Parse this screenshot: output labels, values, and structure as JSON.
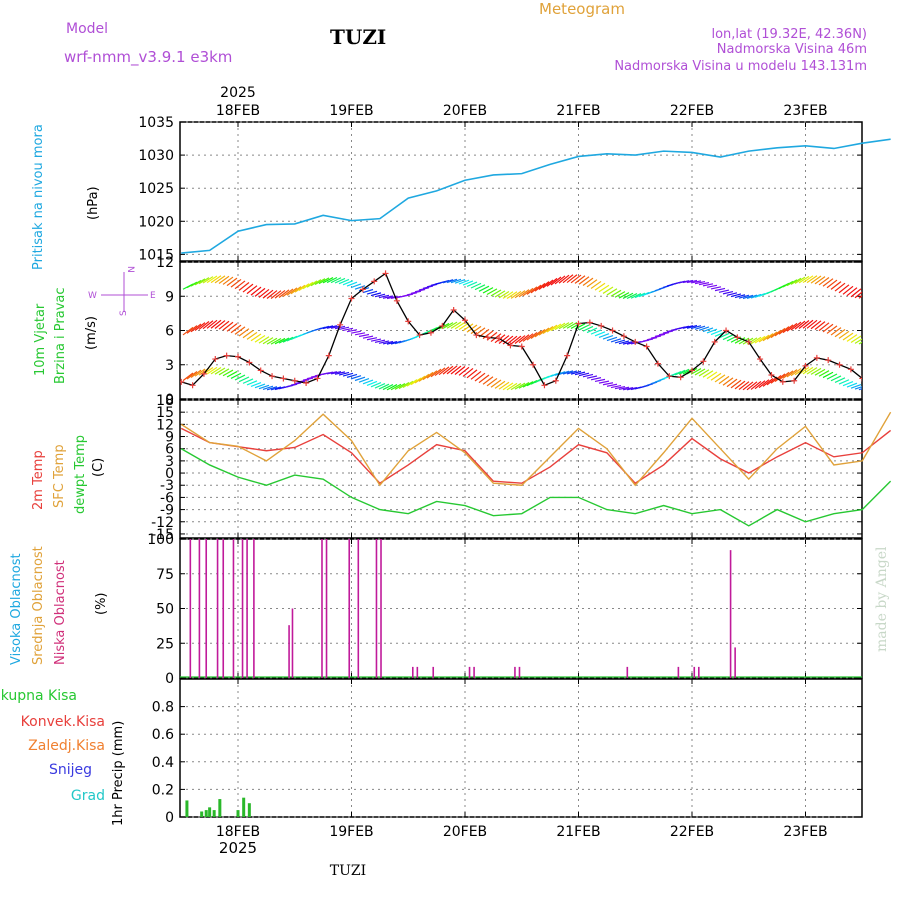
{
  "header": {
    "model_label": "Model",
    "model_name": "wrf-nmm_v3.9.1 e3km",
    "station": "TUZI",
    "meteogram": "Meteogram",
    "lonlat": "lon,lat (19.32E, 42.36N)",
    "elevation": "Nadmorska Visina 46m",
    "model_elevation": "Nadmorska Visina u modelu 143.131m",
    "year_top": "2025",
    "year_bottom": "2025",
    "footer_station": "TUZI",
    "watermark": "made by Angel"
  },
  "days": [
    "18FEB",
    "19FEB",
    "20FEB",
    "21FEB",
    "22FEB",
    "23FEB"
  ],
  "colors": {
    "pressure": "#1fa8e0",
    "temp": "#e8403c",
    "sfc": "#e0a23a",
    "dew": "#27c832",
    "cloud_low": "#c01a9a",
    "precip": "#2ab82a",
    "violet": "#b04fd6",
    "grid": "#888888"
  },
  "chart_data": [
    {
      "id": "pressure",
      "type": "line",
      "ylabel": "(hPa)",
      "side_labels": [
        "Pritisak na nivou mora"
      ],
      "ylim": [
        1014,
        1035
      ],
      "yticks": [
        1015,
        1020,
        1025,
        1030,
        1035
      ],
      "x": [
        0,
        0.25,
        0.5,
        0.75,
        1,
        1.25,
        1.5,
        1.75,
        2,
        2.25,
        2.5,
        2.75,
        3,
        3.25,
        3.5,
        3.75,
        4,
        4.25,
        4.5,
        4.75,
        5,
        5.25,
        5.5,
        5.75,
        6,
        6.25
      ],
      "values": [
        1015.2,
        1015.6,
        1018.5,
        1019.5,
        1019.6,
        1020.9,
        1020.1,
        1020.4,
        1023.5,
        1024.6,
        1026.2,
        1027.0,
        1027.2,
        1028.6,
        1029.8,
        1030.2,
        1030.0,
        1030.6,
        1030.4,
        1029.7,
        1030.6,
        1031.1,
        1031.4,
        1031.0,
        1031.8,
        1032.4
      ]
    },
    {
      "id": "wind",
      "type": "line",
      "ylabel": "(m/s)",
      "side_labels": [
        "10m Vjetar",
        "Brzina i Pravac"
      ],
      "compass": [
        "W",
        "E",
        "N",
        "S"
      ],
      "ylim": [
        0,
        12
      ],
      "yticks": [
        0,
        3,
        6,
        9,
        12
      ],
      "x": [
        0,
        0.1,
        0.2,
        0.3,
        0.4,
        0.5,
        0.6,
        0.7,
        0.8,
        0.9,
        1.0,
        1.1,
        1.2,
        1.3,
        1.4,
        1.5,
        1.6,
        1.7,
        1.8,
        1.9,
        2.0,
        2.1,
        2.2,
        2.3,
        2.4,
        2.5,
        2.6,
        2.7,
        2.8,
        2.9,
        3.0,
        3.1,
        3.2,
        3.3,
        3.4,
        3.5,
        3.6,
        3.7,
        3.8,
        3.9,
        4.0,
        4.1,
        4.2,
        4.3,
        4.4,
        4.5,
        4.6,
        4.7,
        4.8,
        4.9,
        5.0,
        5.1,
        5.2,
        5.3,
        5.4,
        5.5,
        5.6,
        5.7,
        5.8,
        5.9,
        6.0,
        6.1,
        6.2,
        6.3
      ],
      "values": [
        1.5,
        1.2,
        2.2,
        3.5,
        3.8,
        3.7,
        3.2,
        2.5,
        2.0,
        1.8,
        1.6,
        1.4,
        1.8,
        3.8,
        6.5,
        8.8,
        9.6,
        10.3,
        11.0,
        8.6,
        6.8,
        5.6,
        5.8,
        6.4,
        7.8,
        6.9,
        5.6,
        5.4,
        5.3,
        4.7,
        4.6,
        3.0,
        1.2,
        1.6,
        3.8,
        6.6,
        6.7,
        6.4,
        6.0,
        5.5,
        5.0,
        4.6,
        3.1,
        2.0,
        1.9,
        2.5,
        3.3,
        5.0,
        6.0,
        5.4,
        5.0,
        3.5,
        2.1,
        1.5,
        1.6,
        2.9,
        3.6,
        3.4,
        3.0,
        2.6,
        1.8,
        1.2,
        1.0,
        1.8
      ]
    },
    {
      "id": "temperature",
      "type": "line",
      "ylabel": "(C)",
      "side_labels": [
        "2m Temp",
        "SFC Temp",
        "dewpt Temp"
      ],
      "ylim": [
        -16,
        18
      ],
      "yticks": [
        -15,
        -12,
        -9,
        -6,
        -3,
        0,
        3,
        6,
        9,
        12,
        15,
        18
      ],
      "x": [
        0,
        0.25,
        0.5,
        0.75,
        1,
        1.25,
        1.5,
        1.75,
        2,
        2.25,
        2.5,
        2.75,
        3,
        3.25,
        3.5,
        3.75,
        4,
        4.25,
        4.5,
        4.75,
        5,
        5.25,
        5.5,
        5.75,
        6,
        6.25
      ],
      "series": [
        {
          "name": "2m Temp",
          "values": [
            11,
            7.5,
            6.5,
            5.5,
            6.3,
            9.5,
            5,
            -2.5,
            2,
            7,
            5.5,
            -2,
            -2.5,
            1.5,
            7,
            5,
            -2.5,
            2,
            8.5,
            3.5,
            0,
            4,
            7.5,
            4,
            5,
            10.5
          ]
        },
        {
          "name": "SFC Temp",
          "values": [
            12,
            7.5,
            6.6,
            3,
            8,
            14.5,
            8,
            -3,
            5.5,
            10,
            5,
            -2.5,
            -3,
            4,
            11,
            6,
            -3,
            5,
            13.5,
            6,
            -1.5,
            6,
            11.5,
            2,
            3,
            15
          ]
        },
        {
          "name": "dewpt Temp",
          "values": [
            6,
            2,
            -1,
            -3,
            -0.5,
            -1.5,
            -6,
            -9,
            -10,
            -7,
            -8,
            -10.5,
            -10,
            -6,
            -6,
            -9,
            -10,
            -8,
            -10,
            -9,
            -13,
            -9,
            -12,
            -10,
            -9,
            -2
          ]
        }
      ]
    },
    {
      "id": "clouds",
      "type": "bar",
      "ylabel": "(%)",
      "side_labels": [
        "Visoka Oblacnost",
        "Srednja Oblacnost",
        "Niska Oblacnost"
      ],
      "ylim": [
        0,
        100
      ],
      "yticks": [
        0,
        25,
        50,
        75,
        100
      ],
      "x": [
        0.08,
        0.16,
        0.22,
        0.32,
        0.37,
        0.46,
        0.54,
        0.58,
        0.64,
        0.95,
        0.98,
        1.24,
        1.28,
        1.48,
        1.56,
        1.72,
        1.76,
        2.04,
        2.08,
        2.22,
        2.54,
        2.58,
        2.94,
        2.98,
        3.93,
        4.38,
        4.52,
        4.56,
        4.84,
        4.88
      ],
      "values": [
        100,
        100,
        100,
        100,
        100,
        100,
        100,
        100,
        100,
        38,
        50,
        100,
        100,
        100,
        100,
        100,
        100,
        8,
        8,
        8,
        8,
        8,
        8,
        8,
        8,
        8,
        8,
        8,
        92,
        22
      ]
    },
    {
      "id": "precip",
      "type": "bar",
      "ylabel": "1hr Precip (mm)",
      "side_labels": [
        "Ukupna Kisa",
        "Konvek.Kisa",
        "Zaledj.Kisa",
        "Snijeg",
        "Grad"
      ],
      "ylim": [
        0,
        1.0
      ],
      "yticks": [
        0,
        0.2,
        0.4,
        0.6,
        0.8
      ],
      "x": [
        0.05,
        0.18,
        0.22,
        0.25,
        0.29,
        0.34,
        0.5,
        0.55,
        0.6
      ],
      "values": [
        0.12,
        0.04,
        0.05,
        0.07,
        0.05,
        0.13,
        0.05,
        0.14,
        0.1
      ]
    }
  ]
}
